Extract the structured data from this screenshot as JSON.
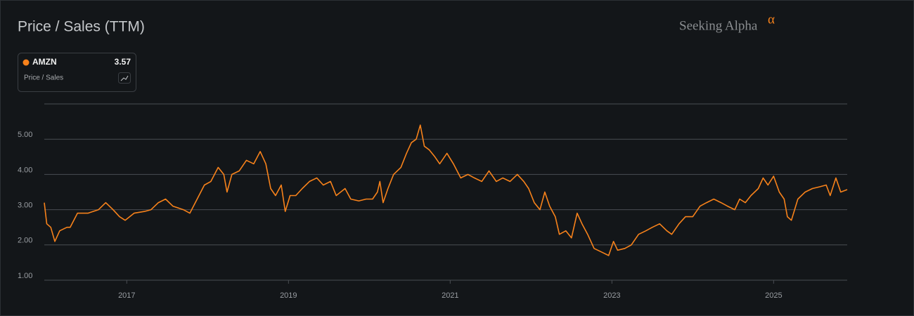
{
  "chart_data": {
    "type": "line",
    "title": "Price / Sales (TTM)",
    "brand": "Seeking Alpha",
    "brand_mark": "α",
    "x": [
      2015.98,
      2016.01,
      2016.06,
      2016.11,
      2016.17,
      2016.26,
      2016.3,
      2016.39,
      2016.52,
      2016.65,
      2016.74,
      2016.83,
      2016.91,
      2016.98,
      2017.09,
      2017.22,
      2017.3,
      2017.39,
      2017.48,
      2017.57,
      2017.7,
      2017.78,
      2017.87,
      2017.96,
      2018.04,
      2018.13,
      2018.2,
      2018.24,
      2018.3,
      2018.39,
      2018.48,
      2018.57,
      2018.65,
      2018.72,
      2018.78,
      2018.84,
      2018.91,
      2018.96,
      2019.02,
      2019.09,
      2019.17,
      2019.26,
      2019.35,
      2019.43,
      2019.52,
      2019.59,
      2019.7,
      2019.77,
      2019.87,
      2019.96,
      2020.04,
      2020.1,
      2020.13,
      2020.17,
      2020.23,
      2020.3,
      2020.39,
      2020.46,
      2020.52,
      2020.58,
      2020.63,
      2020.68,
      2020.74,
      2020.81,
      2020.87,
      2020.96,
      2021.04,
      2021.13,
      2021.22,
      2021.3,
      2021.39,
      2021.48,
      2021.57,
      2021.65,
      2021.74,
      2021.83,
      2021.91,
      2021.97,
      2022.04,
      2022.11,
      2022.17,
      2022.23,
      2022.3,
      2022.35,
      2022.43,
      2022.5,
      2022.57,
      2022.63,
      2022.7,
      2022.78,
      2022.87,
      2022.96,
      2023.02,
      2023.07,
      2023.16,
      2023.24,
      2023.33,
      2023.42,
      2023.5,
      2023.59,
      2023.68,
      2023.74,
      2023.83,
      2023.91,
      2024.0,
      2024.09,
      2024.17,
      2024.26,
      2024.35,
      2024.43,
      2024.52,
      2024.58,
      2024.65,
      2024.72,
      2024.81,
      2024.87,
      2024.93,
      2025.0,
      2025.07,
      2025.13,
      2025.17,
      2025.22,
      2025.26,
      2025.3,
      2025.39,
      2025.48,
      2025.57,
      2025.65,
      2025.7,
      2025.77,
      2025.83,
      2025.91
    ],
    "series": [
      {
        "name": "AMZN",
        "color": "#f7821b",
        "latest": 3.57,
        "metric": "Price / Sales",
        "values": [
          3.2,
          2.6,
          2.5,
          2.1,
          2.4,
          2.5,
          2.5,
          2.9,
          2.9,
          3.0,
          3.2,
          3.0,
          2.8,
          2.7,
          2.9,
          2.95,
          3.0,
          3.2,
          3.3,
          3.1,
          3.0,
          2.9,
          3.3,
          3.7,
          3.8,
          4.2,
          4.0,
          3.5,
          4.0,
          4.1,
          4.4,
          4.3,
          4.65,
          4.3,
          3.6,
          3.4,
          3.7,
          2.95,
          3.4,
          3.4,
          3.6,
          3.8,
          3.9,
          3.7,
          3.8,
          3.4,
          3.6,
          3.3,
          3.25,
          3.3,
          3.3,
          3.5,
          3.8,
          3.2,
          3.6,
          4.0,
          4.2,
          4.6,
          4.9,
          5.0,
          5.4,
          4.8,
          4.7,
          4.5,
          4.3,
          4.6,
          4.3,
          3.9,
          4.0,
          3.9,
          3.8,
          4.1,
          3.8,
          3.9,
          3.8,
          4.0,
          3.8,
          3.6,
          3.2,
          3.0,
          3.5,
          3.1,
          2.8,
          2.3,
          2.4,
          2.2,
          2.9,
          2.6,
          2.3,
          1.9,
          1.8,
          1.7,
          2.1,
          1.85,
          1.9,
          2.0,
          2.3,
          2.4,
          2.5,
          2.6,
          2.4,
          2.3,
          2.6,
          2.8,
          2.8,
          3.1,
          3.2,
          3.3,
          3.2,
          3.1,
          3.0,
          3.3,
          3.2,
          3.4,
          3.6,
          3.9,
          3.7,
          3.95,
          3.5,
          3.3,
          2.8,
          2.7,
          3.0,
          3.3,
          3.5,
          3.6,
          3.65,
          3.7,
          3.4,
          3.9,
          3.5,
          3.57
        ]
      }
    ],
    "xlim": [
      2015.98,
      2025.91
    ],
    "xticks": [
      2017,
      2019,
      2021,
      2023,
      2025
    ],
    "ylim": [
      1,
      6
    ],
    "yticks": [
      {
        "value": 1,
        "label": "1.00"
      },
      {
        "value": 2,
        "label": "2.00"
      },
      {
        "value": 3,
        "label": "3.00"
      },
      {
        "value": 4,
        "label": "4.00"
      },
      {
        "value": 5,
        "label": "5.00"
      }
    ],
    "grid": true
  }
}
